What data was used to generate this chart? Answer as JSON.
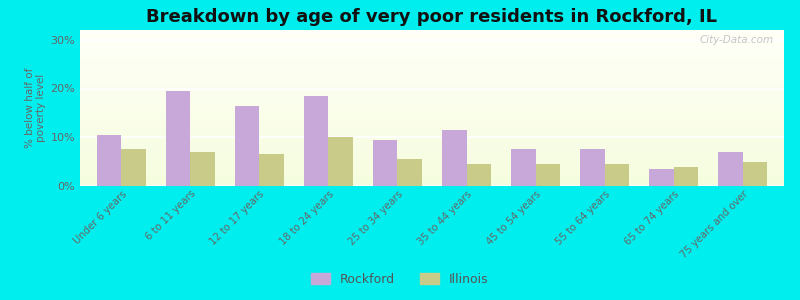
{
  "title": "Breakdown by age of very poor residents in Rockford, IL",
  "ylabel": "% below half of\npoverty level",
  "categories": [
    "Under 6 years",
    "6 to 11 years",
    "12 to 17 years",
    "18 to 24 years",
    "25 to 34 years",
    "35 to 44 years",
    "45 to 54 years",
    "55 to 64 years",
    "65 to 74 years",
    "75 years and over"
  ],
  "rockford_values": [
    10.5,
    19.5,
    16.5,
    18.5,
    9.5,
    11.5,
    7.5,
    7.5,
    3.5,
    7.0
  ],
  "illinois_values": [
    7.5,
    7.0,
    6.5,
    10.0,
    5.5,
    4.5,
    4.5,
    4.5,
    4.0,
    5.0
  ],
  "rockford_color": "#c8a8d8",
  "illinois_color": "#c8cc88",
  "ylim": [
    0,
    32
  ],
  "yticks": [
    0,
    10,
    20,
    30
  ],
  "ytick_labels": [
    "0%",
    "10%",
    "20%",
    "30%"
  ],
  "outer_bg": "#00eeee",
  "title_fontsize": 13,
  "bar_width": 0.35,
  "legend_labels": [
    "Rockford",
    "Illinois"
  ],
  "watermark": "City-Data.com"
}
